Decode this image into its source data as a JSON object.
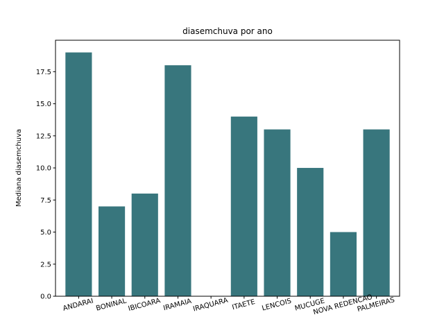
{
  "chart_data": {
    "type": "bar",
    "title": "diasemchuva por ano",
    "xlabel": "",
    "ylabel": "Mediana diasemchuva",
    "categories": [
      "ANDARAI",
      "BONINAL",
      "IBICOARA",
      "IRAMAIA",
      "IRAQUARA",
      "ITAETE",
      "LENCOIS",
      "MUCUGE",
      "NOVA REDENCAO",
      "PALMEIRAS"
    ],
    "values": [
      19,
      7,
      8,
      18,
      0,
      14,
      13,
      10,
      5,
      13
    ],
    "ylim": [
      0,
      19.95
    ],
    "yticks": [
      0.0,
      2.5,
      5.0,
      7.5,
      10.0,
      12.5,
      15.0,
      17.5
    ],
    "ytick_labels": [
      "0.0",
      "2.5",
      "5.0",
      "7.5",
      "10.0",
      "12.5",
      "15.0",
      "17.5"
    ],
    "bar_color": "#38767d",
    "grid": false,
    "legend": "none"
  }
}
